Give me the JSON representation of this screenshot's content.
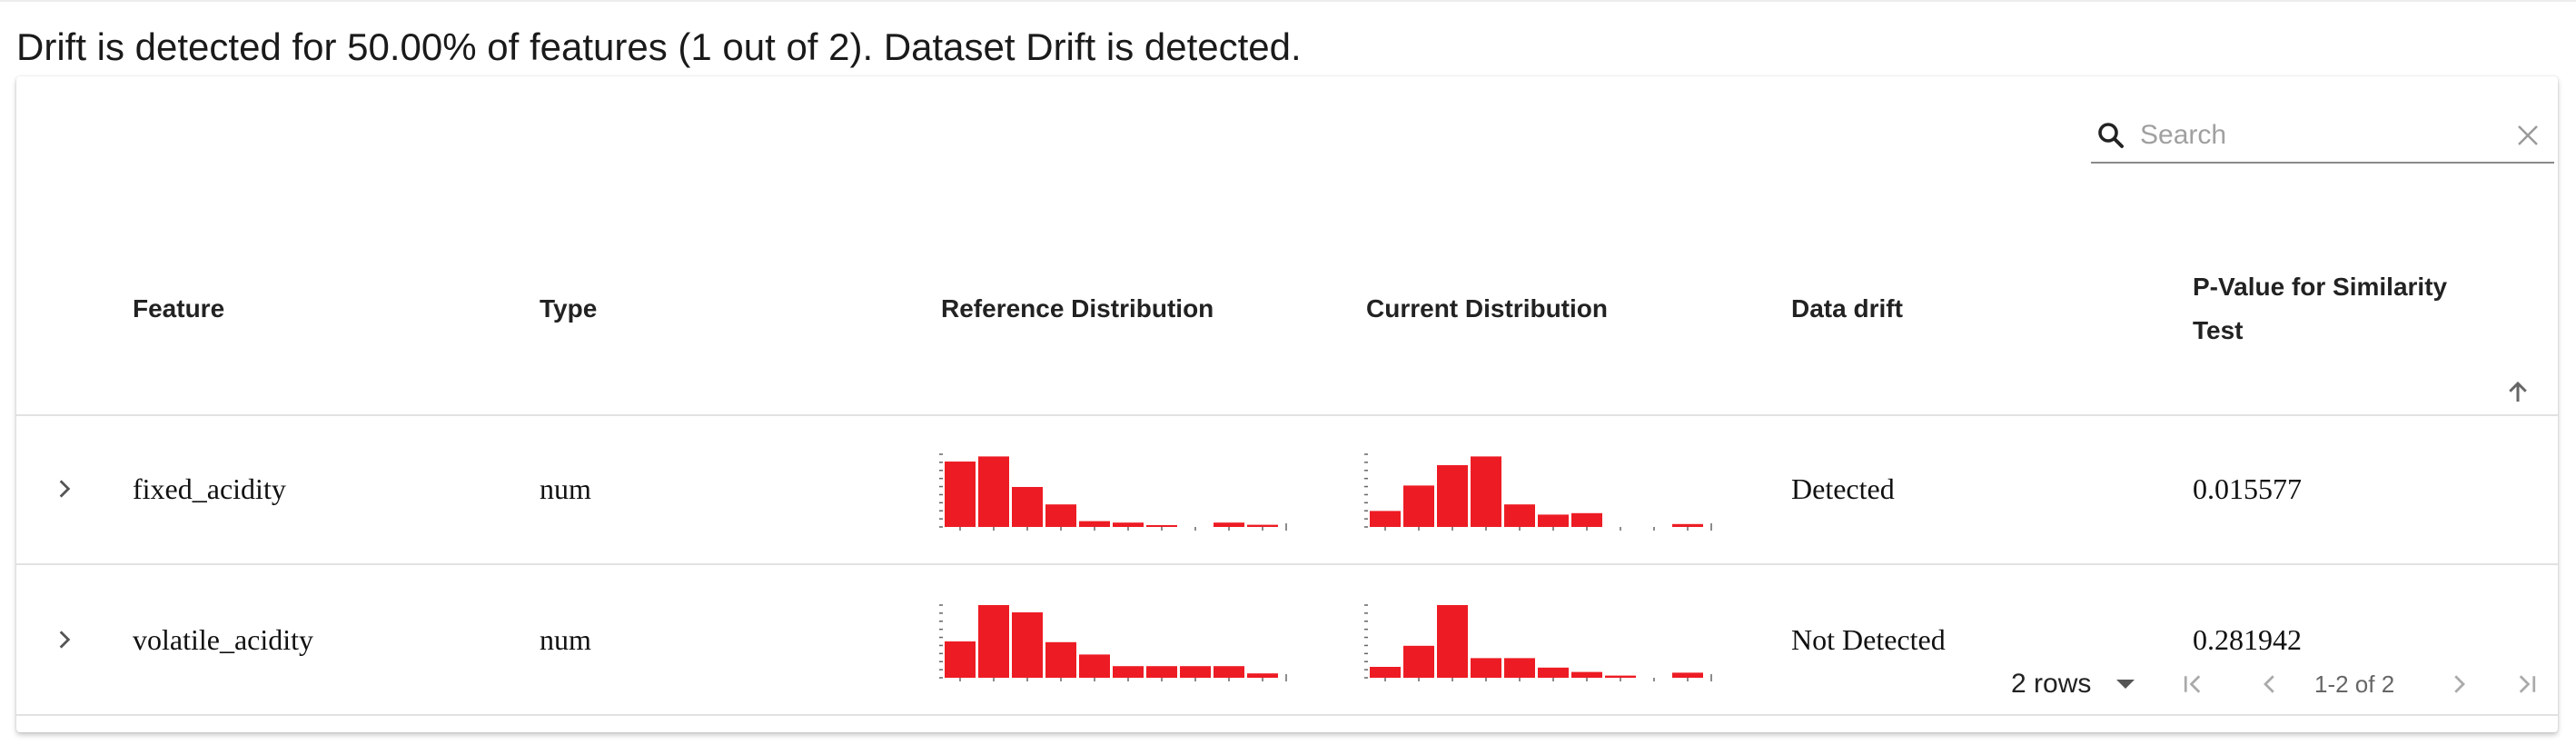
{
  "summary": "Drift is detected for 50.00% of features (1 out of 2). Dataset Drift is detected.",
  "search": {
    "placeholder": "Search",
    "value": ""
  },
  "columns": {
    "feature": "Feature",
    "type": "Type",
    "reference": "Reference Distribution",
    "current": "Current Distribution",
    "drift": "Data drift",
    "pvalue_line1": "P-Value for Similarity",
    "pvalue_line2": "Test"
  },
  "rows": [
    {
      "feature": "fixed_acidity",
      "type": "num",
      "drift": "Detected",
      "pvalue": "0.015577",
      "reference_hist": [
        0.9,
        0.97,
        0.55,
        0.31,
        0.08,
        0.06,
        0.02,
        0,
        0.06,
        0.03
      ],
      "current_hist": [
        0.22,
        0.57,
        0.85,
        0.97,
        0.31,
        0.17,
        0.19,
        0,
        0,
        0.04
      ]
    },
    {
      "feature": "volatile_acidity",
      "type": "num",
      "drift": "Not Detected",
      "pvalue": "0.281942",
      "reference_hist": [
        0.5,
        1.0,
        0.9,
        0.49,
        0.32,
        0.16,
        0.16,
        0.16,
        0.16,
        0.06
      ],
      "current_hist": [
        0.15,
        0.44,
        1.0,
        0.27,
        0.27,
        0.14,
        0.08,
        0.03,
        0,
        0.07
      ]
    }
  ],
  "pagination": {
    "rows_label": "2 rows",
    "range_label": "1-2 of 2"
  },
  "colors": {
    "bar": "#ed1c24",
    "axis": "#666666"
  },
  "icons": [
    "search-icon",
    "clear-icon",
    "sort-ascending-icon",
    "chevron-right-icon",
    "first-page-icon",
    "previous-page-icon",
    "next-page-icon",
    "last-page-icon",
    "dropdown-caret-icon"
  ]
}
